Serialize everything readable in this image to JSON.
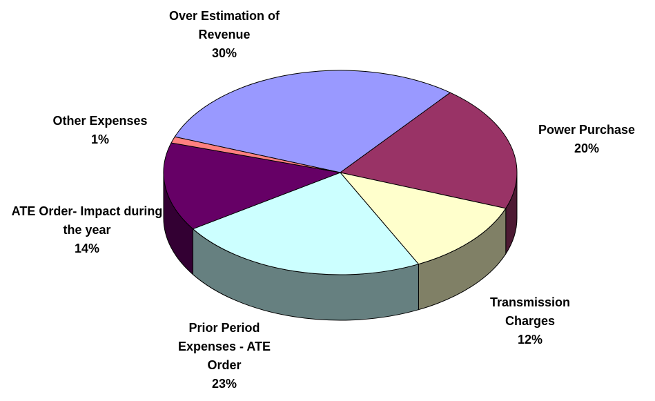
{
  "chart_data": {
    "type": "pie3d",
    "categories": [
      "Over Estimation of Revenue",
      "Power Purchase",
      "Transmission Charges",
      "Prior Period Expenses - ATE Order",
      "ATE Order- Impact during the year",
      "Other Expenses"
    ],
    "values": [
      30,
      20,
      12,
      23,
      14,
      1
    ],
    "value_labels": [
      "30%",
      "20%",
      "12%",
      "23%",
      "14%",
      "1%"
    ],
    "colors": [
      "#9999ff",
      "#993366",
      "#ffffcc",
      "#ccffff",
      "#660066",
      "#ff8080"
    ]
  }
}
